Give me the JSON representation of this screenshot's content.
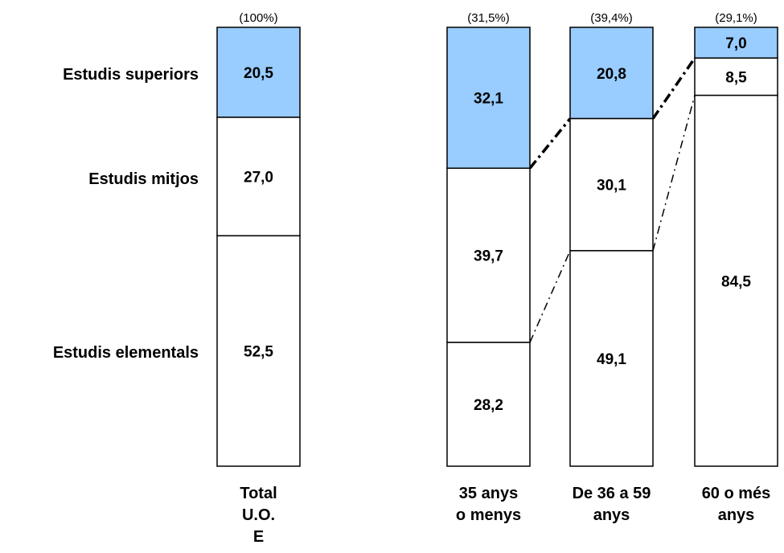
{
  "chart_data": {
    "type": "bar",
    "stacked": true,
    "normalized_percent": true,
    "row_labels": [
      "Estudis superiors",
      "Estudis mitjos",
      "Estudis elementals"
    ],
    "colors": {
      "superiors": "#99ccff",
      "mitjos": "#ffffff",
      "elementals": "#ffffff",
      "stroke": "#000000"
    },
    "bars": [
      {
        "category_lines": [
          "Total",
          "U.O.",
          "E"
        ],
        "share_label": "(100%)",
        "segments": [
          {
            "name": "Estudis superiors",
            "value": 20.5,
            "label": "20,5"
          },
          {
            "name": "Estudis mitjos",
            "value": 27.0,
            "label": "27,0"
          },
          {
            "name": "Estudis elementals",
            "value": 52.5,
            "label": "52,5"
          }
        ]
      },
      {
        "category_lines": [
          "35 anys",
          "o menys"
        ],
        "share_label": "(31,5%)",
        "segments": [
          {
            "name": "Estudis superiors",
            "value": 32.1,
            "label": "32,1"
          },
          {
            "name": "Estudis mitjos",
            "value": 39.7,
            "label": "39,7"
          },
          {
            "name": "Estudis elementals",
            "value": 28.2,
            "label": "28,2"
          }
        ]
      },
      {
        "category_lines": [
          "De 36 a 59",
          "anys"
        ],
        "share_label": "(39,4%)",
        "segments": [
          {
            "name": "Estudis superiors",
            "value": 20.8,
            "label": "20,8"
          },
          {
            "name": "Estudis mitjos",
            "value": 30.1,
            "label": "30,1"
          },
          {
            "name": "Estudis elementals",
            "value": 49.1,
            "label": "49,1"
          }
        ]
      },
      {
        "category_lines": [
          "60 o més",
          "anys"
        ],
        "share_label": "(29,1%)",
        "segments": [
          {
            "name": "Estudis superiors",
            "value": 7.0,
            "label": "7,0"
          },
          {
            "name": "Estudis mitjos",
            "value": 8.5,
            "label": "8,5"
          },
          {
            "name": "Estudis elementals",
            "value": 84.5,
            "label": "84,5"
          }
        ]
      }
    ]
  }
}
